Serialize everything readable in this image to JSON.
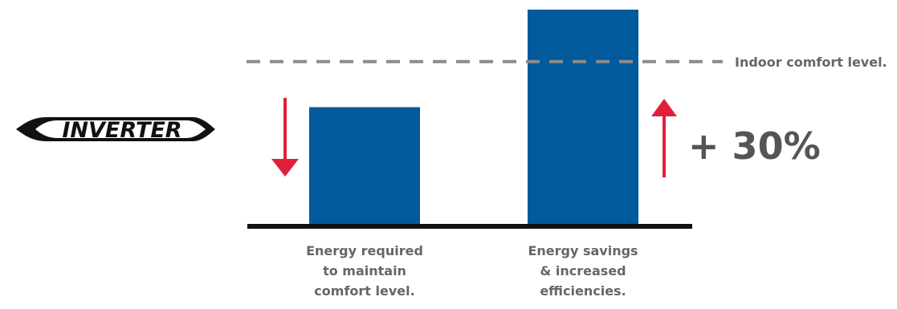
{
  "logo": {
    "text": "INVERTER"
  },
  "colors": {
    "bar": "#005a9c",
    "arrow": "#e0203a",
    "baseline": "#111111",
    "comfort_line": "#8c8c8c",
    "text": "#666666",
    "percent": "#555555"
  },
  "chart_data": {
    "type": "bar",
    "categories": [
      "Energy required\nto maintain\ncomfort level.",
      "Energy savings\n& increased\nefficiencies."
    ],
    "values": [
      55,
      100
    ],
    "ylim": [
      0,
      100
    ],
    "reference_line": {
      "label": "Indoor comfort level.",
      "value": 76
    },
    "annotations": [
      {
        "text": "+ 30%",
        "category_index": 1,
        "arrow": "up"
      }
    ],
    "arrows": [
      {
        "category_index": 0,
        "direction": "down"
      },
      {
        "category_index": 1,
        "direction": "up"
      }
    ],
    "grid": false
  }
}
